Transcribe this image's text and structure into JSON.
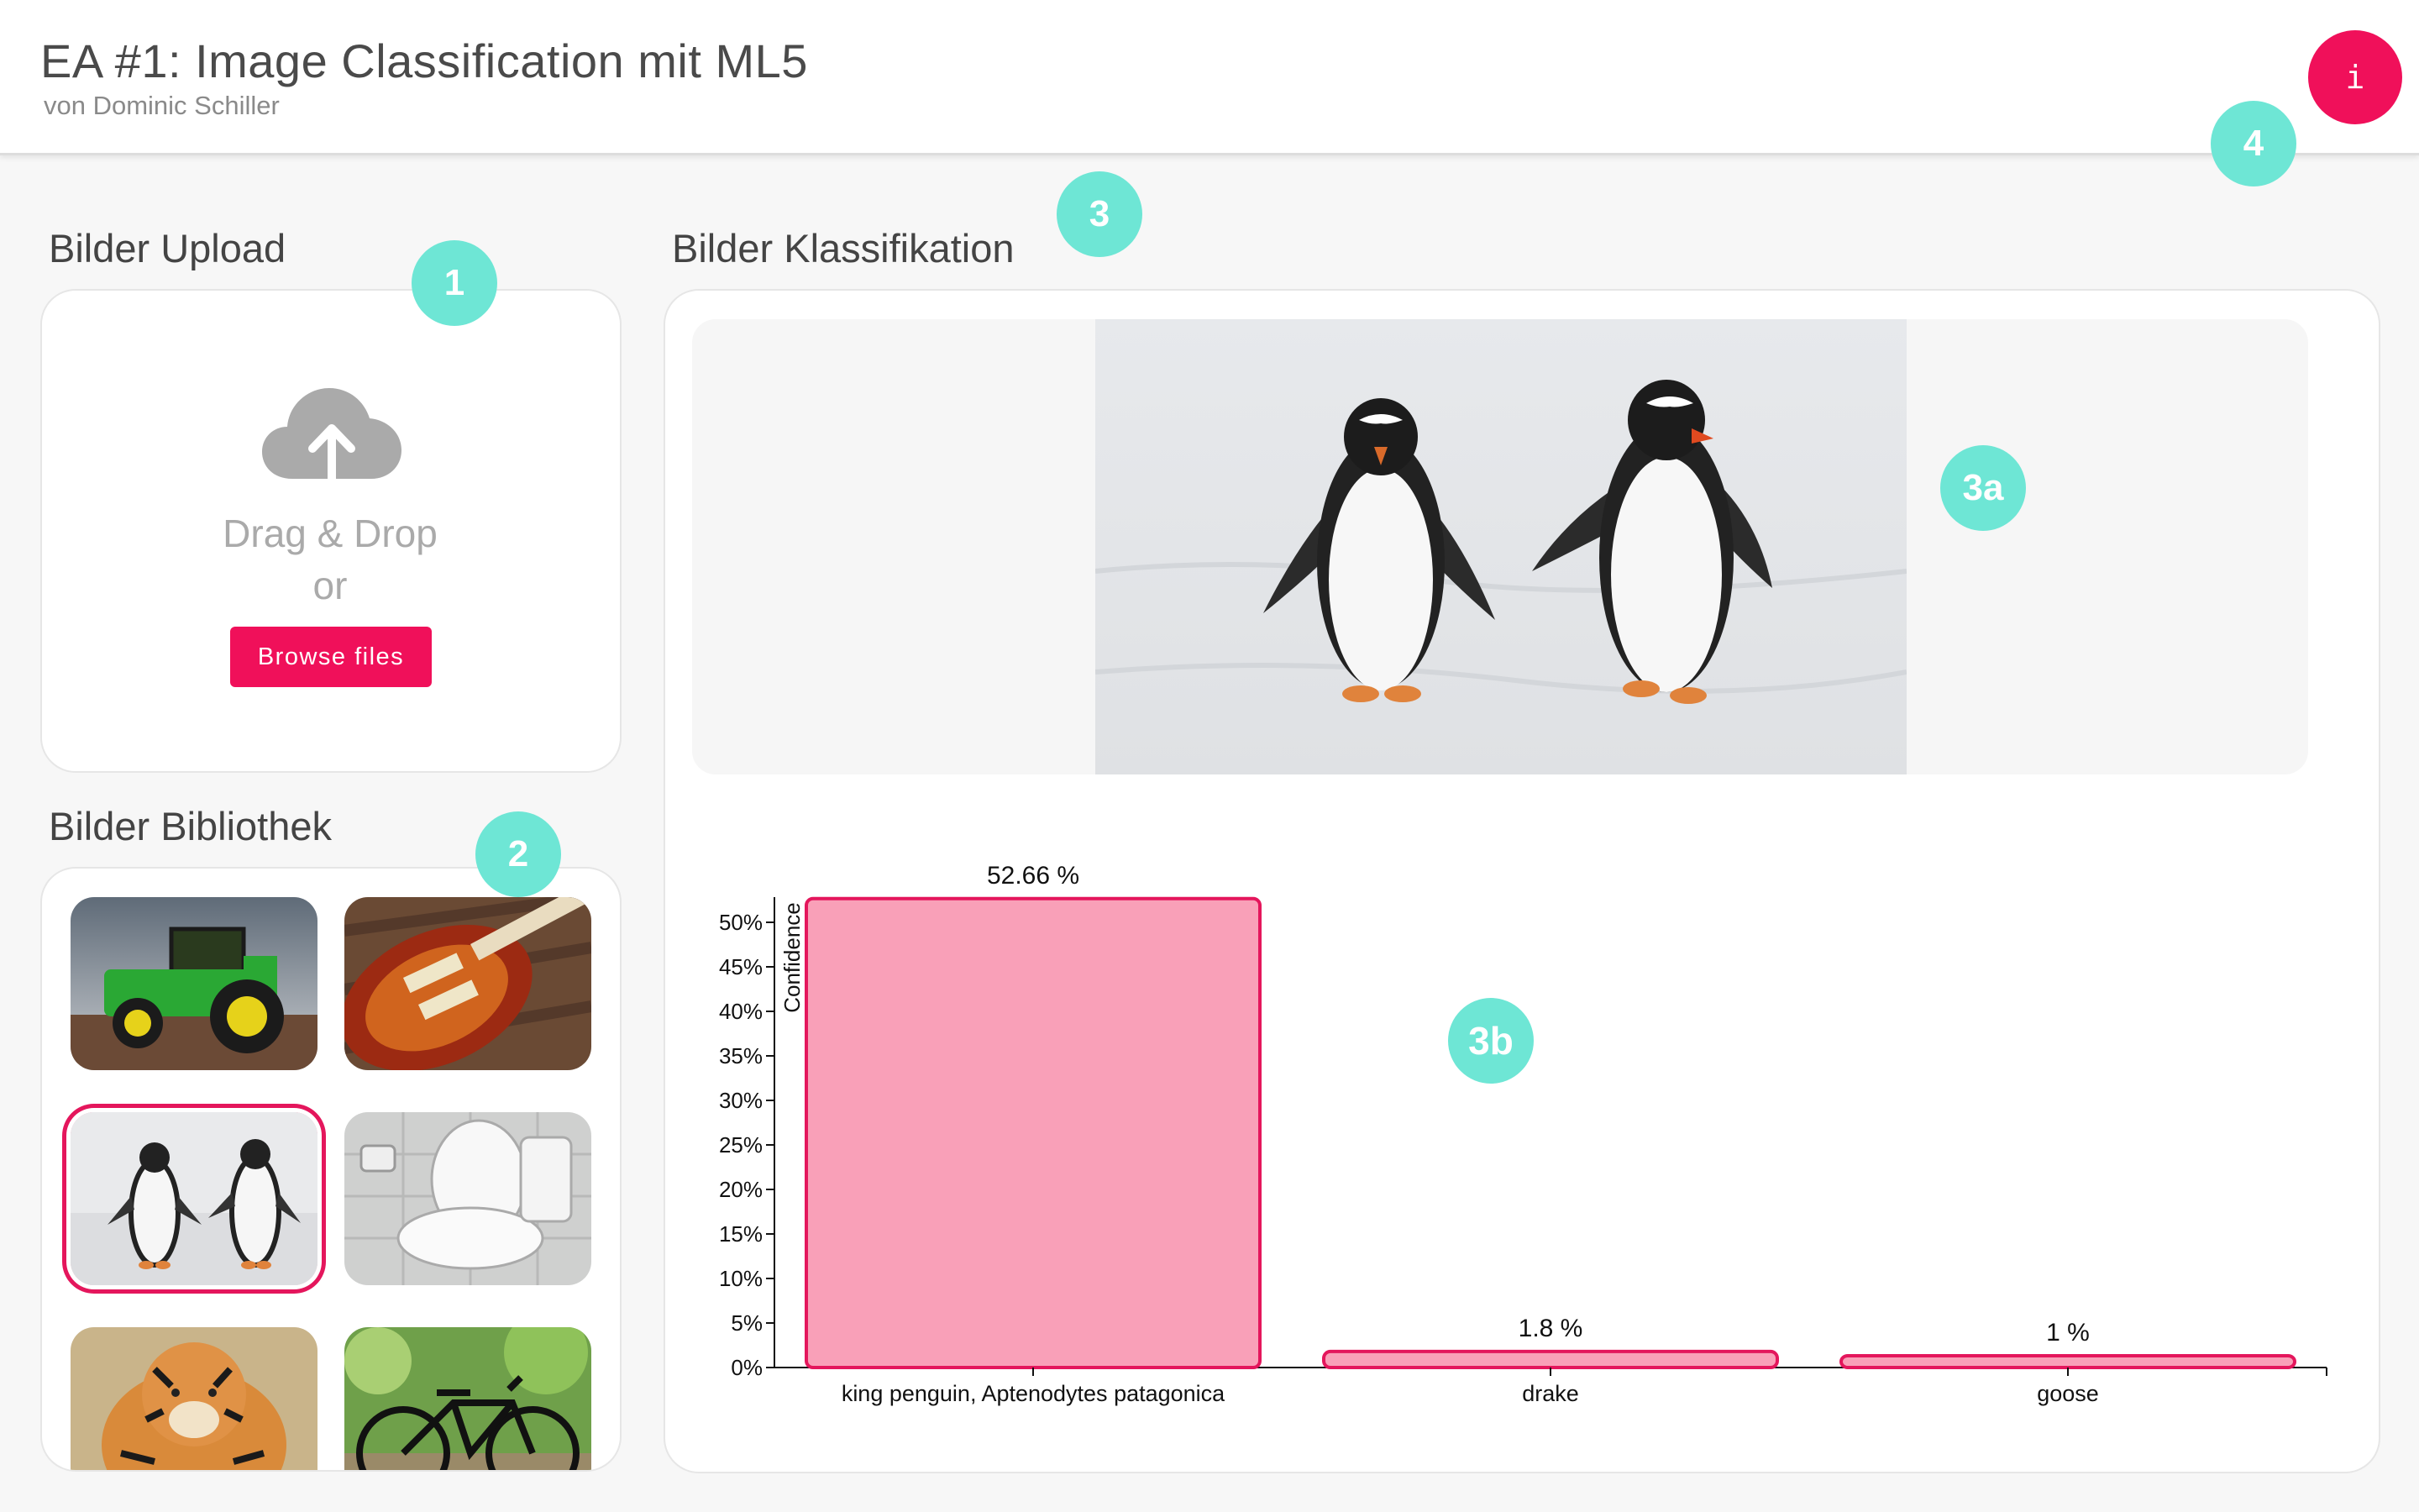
{
  "header": {
    "title": "EA #1: Image Classification mit ML5",
    "subtitle": "von Dominic Schiller",
    "info_label": "i"
  },
  "upload": {
    "title": "Bilder Upload",
    "drop_line1": "Drag & Drop",
    "drop_line2": "or",
    "browse_label": "Browse files",
    "icon": "cloud-upload-icon"
  },
  "library": {
    "title": "Bilder Bibliothek",
    "thumbnails": [
      {
        "name": "tractor",
        "selected": false
      },
      {
        "name": "guitar",
        "selected": false
      },
      {
        "name": "penguins",
        "selected": true
      },
      {
        "name": "toilet",
        "selected": false
      },
      {
        "name": "tiger",
        "selected": false
      },
      {
        "name": "bicycle",
        "selected": false
      }
    ]
  },
  "classification": {
    "title": "Bilder Klassifikation",
    "preview_image": "penguins"
  },
  "markers": {
    "m1": "1",
    "m2": "2",
    "m3": "3",
    "m3a": "3a",
    "m3b": "3b",
    "m4": "4"
  },
  "colors": {
    "accent": "#f0105a",
    "marker": "#6ee6d5",
    "bar_fill": "#f9a0b8",
    "bar_stroke": "#e4165c"
  },
  "chart_data": {
    "type": "bar",
    "categories": [
      "king penguin, Aptenodytes patagonica",
      "drake",
      "goose"
    ],
    "values": [
      52.66,
      1.8,
      1
    ],
    "value_labels": [
      "52.66 %",
      "1.8 %",
      "1 %"
    ],
    "ylabel": "Confidence",
    "xlabel": "",
    "ylim": [
      0,
      50
    ],
    "yticks": [
      "0%",
      "5%",
      "10%",
      "15%",
      "20%",
      "25%",
      "30%",
      "35%",
      "40%",
      "45%",
      "50%"
    ],
    "ytick_values": [
      0,
      5,
      10,
      15,
      20,
      25,
      30,
      35,
      40,
      45,
      50
    ],
    "grid": false
  }
}
